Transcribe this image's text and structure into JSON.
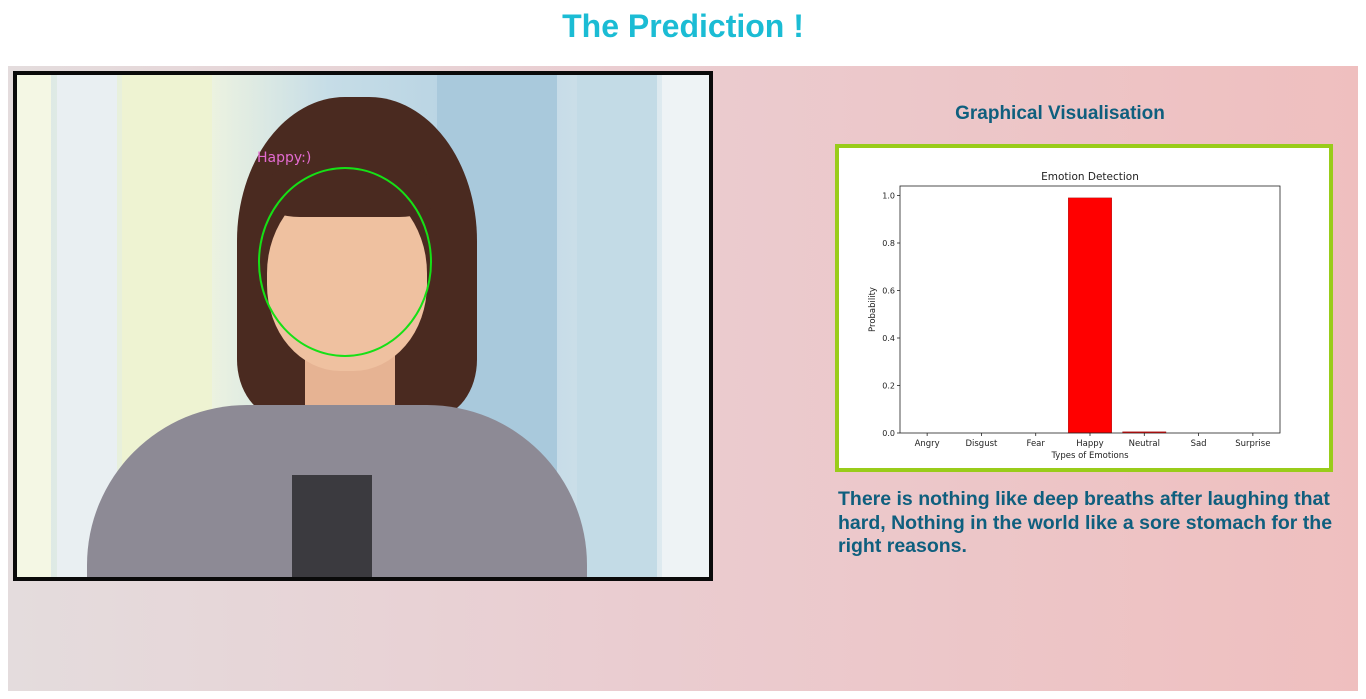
{
  "page": {
    "title": "The Prediction !"
  },
  "photo": {
    "emotion_label": "Happy:)"
  },
  "visualisation": {
    "heading": "Graphical Visualisation"
  },
  "quote": "There is nothing like deep breaths after laughing that hard, Nothing in the world like a sore stomach for the right reasons.",
  "colors": {
    "title": "#1bbcd4",
    "heading_text": "#0f5f7e",
    "chart_border": "#99cc1a",
    "bar": "#ff0000",
    "face_ring": "#16e016",
    "emotion_label": "#e36bd0"
  },
  "chart_data": {
    "type": "bar",
    "title": "Emotion Detection",
    "xlabel": "Types of Emotions",
    "ylabel": "Probability",
    "categories": [
      "Angry",
      "Disgust",
      "Fear",
      "Happy",
      "Neutral",
      "Sad",
      "Surprise"
    ],
    "values": [
      0.0,
      0.0,
      0.0,
      0.99,
      0.005,
      0.0,
      0.0
    ],
    "ylim": [
      0,
      1.04
    ],
    "yticks": [
      "0.0",
      "0.2",
      "0.4",
      "0.6",
      "0.8",
      "1.0"
    ],
    "grid": false,
    "bar_color": "#ff0000"
  }
}
